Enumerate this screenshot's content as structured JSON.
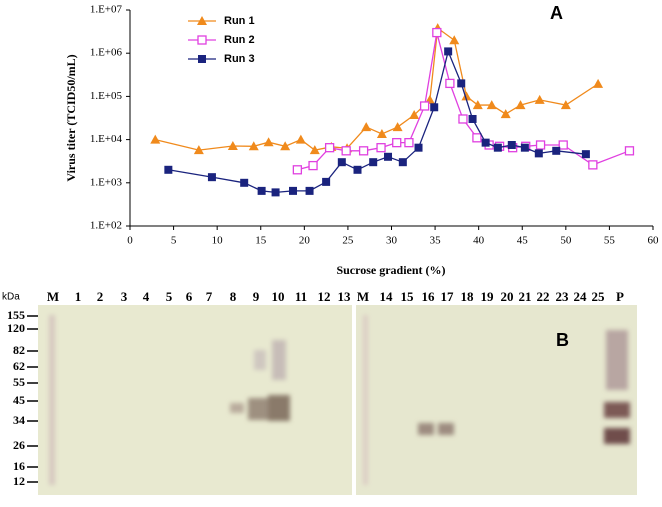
{
  "chart_data": {
    "type": "line",
    "xlabel": "Sucrose gradient (%)",
    "ylabel": "Virus titer (TCID50/mL)",
    "annotation": "A",
    "ylog": true,
    "legend": "upper left",
    "xlim": [
      0,
      60
    ],
    "xticks": [
      0,
      5,
      10,
      15,
      20,
      25,
      30,
      35,
      40,
      45,
      50,
      55,
      60
    ],
    "ylim": [
      100,
      10000000
    ],
    "yticks": [
      {
        "value": 100,
        "label": "1.E+02"
      },
      {
        "value": 1000,
        "label": "1.E+03"
      },
      {
        "value": 10000,
        "label": "1.E+04"
      },
      {
        "value": 100000,
        "label": "1.E+05"
      },
      {
        "value": 1000000,
        "label": "1.E+06"
      },
      {
        "value": 10000000,
        "label": "1.E+07"
      }
    ],
    "series": [
      {
        "name": "Run 1",
        "color": "#f08a1c",
        "marker": "triangle",
        "x": [
          2.9,
          7.9,
          11.8,
          14.2,
          15.9,
          17.8,
          19.6,
          21.2,
          23.1,
          24.9,
          27.1,
          28.9,
          30.7,
          32.6,
          34.4,
          35.3,
          37.2,
          38.6,
          39.9,
          41.5,
          43.1,
          44.8,
          47.0,
          50.0,
          53.7
        ],
        "values": [
          10000,
          5700,
          7100,
          7000,
          8700,
          7000,
          10000,
          5700,
          6800,
          6300,
          19500,
          13500,
          19500,
          37000,
          83000,
          3800000,
          2000000,
          100000,
          63000,
          63000,
          39000,
          63000,
          83000,
          63000,
          195000
        ]
      },
      {
        "name": "Run 2",
        "color": "#e040e0",
        "marker": "square-open",
        "x": [
          19.2,
          21.0,
          22.9,
          24.8,
          26.8,
          28.8,
          30.6,
          32.0,
          33.8,
          35.2,
          36.7,
          38.2,
          39.8,
          41.2,
          42.4,
          43.9,
          45.4,
          47.1,
          49.7,
          53.1,
          57.3
        ],
        "values": [
          2000,
          2500,
          6500,
          5500,
          5500,
          6500,
          8500,
          8500,
          60000,
          3000000,
          200000,
          30000,
          11000,
          7500,
          7000,
          6500,
          7000,
          7500,
          7500,
          2600,
          5500
        ]
      },
      {
        "name": "Run 3",
        "color": "#1a237e",
        "marker": "square",
        "x": [
          4.4,
          9.4,
          13.1,
          15.1,
          16.7,
          18.7,
          20.6,
          22.5,
          24.3,
          26.1,
          27.9,
          29.6,
          31.3,
          33.1,
          34.9,
          36.5,
          38.0,
          39.3,
          40.8,
          42.2,
          43.8,
          45.3,
          46.9,
          48.9,
          52.3
        ],
        "values": [
          2000,
          1350,
          1000,
          650,
          600,
          650,
          650,
          1050,
          3000,
          2000,
          3000,
          4000,
          3000,
          6500,
          56000,
          1100000,
          200000,
          30000,
          8500,
          6500,
          7500,
          6500,
          4800,
          5500,
          4600
        ]
      }
    ]
  },
  "blot": {
    "panel_label": "B",
    "unit": "kDa",
    "markers": [
      155,
      120,
      82,
      62,
      55,
      45,
      34,
      26,
      16,
      12
    ],
    "lanes": [
      "M",
      "1",
      "2",
      "3",
      "4",
      "5",
      "6",
      "7",
      "8",
      "9",
      "10",
      "11",
      "12",
      "13",
      "M",
      "14",
      "15",
      "16",
      "17",
      "18",
      "19",
      "20",
      "21",
      "22",
      "23",
      "24",
      "25",
      "P"
    ]
  }
}
